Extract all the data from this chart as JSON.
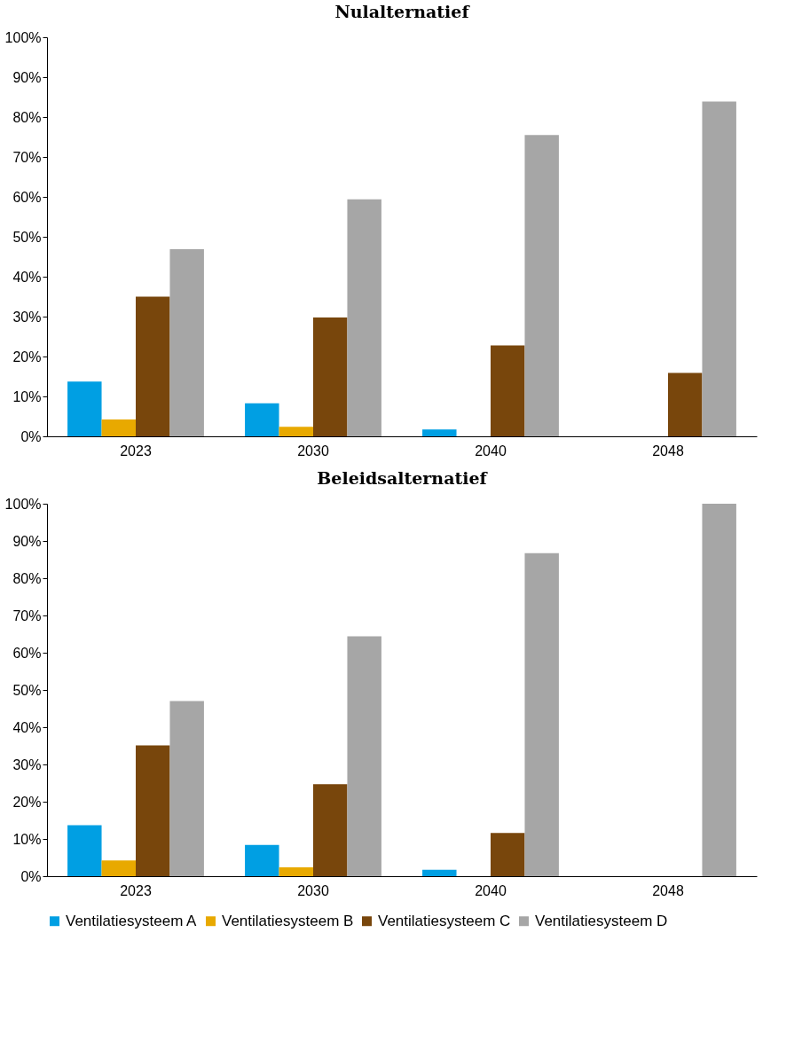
{
  "chart_data": [
    {
      "type": "bar",
      "title": "Nulalternatief",
      "categories": [
        "2023",
        "2030",
        "2040",
        "2048"
      ],
      "series": [
        {
          "color": "#009fe3",
          "values": [
            13.7,
            8.3,
            1.7,
            0
          ]
        },
        {
          "color": "#e8a900",
          "values": [
            4.2,
            2.4,
            0,
            0
          ]
        },
        {
          "color": "#78460c",
          "values": [
            35.0,
            29.8,
            22.8,
            15.9
          ]
        },
        {
          "color": "#a6a6a6",
          "values": [
            46.9,
            59.4,
            75.5,
            83.9
          ]
        }
      ],
      "ylim": [
        0,
        100
      ],
      "yticks": [
        {
          "value": 0,
          "label": "0%"
        },
        {
          "value": 10,
          "label": "10%"
        },
        {
          "value": 20,
          "label": "20%"
        },
        {
          "value": 30,
          "label": "30%"
        },
        {
          "value": 40,
          "label": "40%"
        },
        {
          "value": 50,
          "label": "50%"
        },
        {
          "value": 60,
          "label": "60%"
        },
        {
          "value": 70,
          "label": "70%"
        },
        {
          "value": 80,
          "label": "80%"
        },
        {
          "value": 90,
          "label": "90%"
        },
        {
          "value": 100,
          "label": "100%"
        }
      ],
      "grid": false,
      "legend": false
    },
    {
      "type": "bar",
      "title": "Beleidsalternatief",
      "categories": [
        "2023",
        "2030",
        "2040",
        "2048"
      ],
      "series": [
        {
          "name": "Ventilatiesysteem A",
          "color": "#009fe3",
          "values": [
            13.7,
            8.4,
            1.7,
            0
          ]
        },
        {
          "name": "Ventilatiesysteem B",
          "color": "#e8a900",
          "values": [
            4.2,
            2.4,
            0,
            0
          ]
        },
        {
          "name": "Ventilatiesysteem C",
          "color": "#78460c",
          "values": [
            35.1,
            24.7,
            11.6,
            0
          ]
        },
        {
          "name": "Ventilatiesysteem D",
          "color": "#a6a6a6",
          "values": [
            47.0,
            64.4,
            86.7,
            100
          ]
        }
      ],
      "ylim": [
        0,
        100
      ],
      "yticks": [
        {
          "value": 0,
          "label": "0%"
        },
        {
          "value": 10,
          "label": "10%"
        },
        {
          "value": 20,
          "label": "20%"
        },
        {
          "value": 30,
          "label": "30%"
        },
        {
          "value": 40,
          "label": "40%"
        },
        {
          "value": 50,
          "label": "50%"
        },
        {
          "value": 60,
          "label": "60%"
        },
        {
          "value": 70,
          "label": "70%"
        },
        {
          "value": 80,
          "label": "80%"
        },
        {
          "value": 90,
          "label": "90%"
        },
        {
          "value": 100,
          "label": "100%"
        }
      ],
      "grid": false,
      "legend": "bottom"
    }
  ]
}
